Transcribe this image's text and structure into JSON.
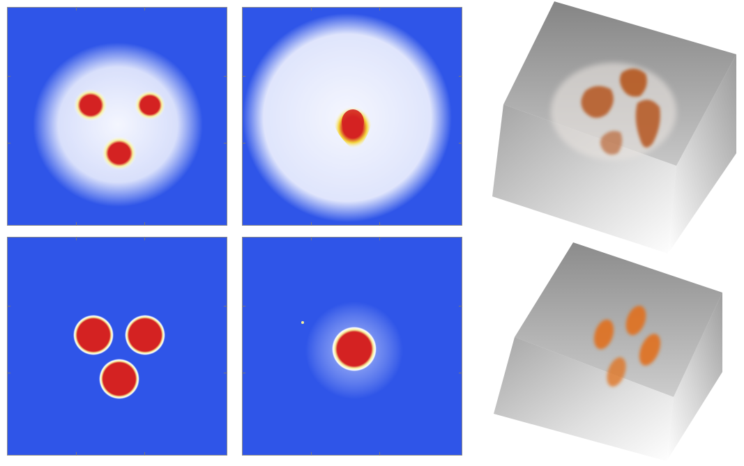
{
  "figure": {
    "panels": [
      {
        "id": "top-left",
        "field_color": "#2f55e8",
        "halo": "broad",
        "blob_count": 3,
        "blob_shape": "irregular"
      },
      {
        "id": "top-middle",
        "field_color": "#2f55e8",
        "halo": "broad",
        "blob_count": 1,
        "blob_shape": "irregular"
      },
      {
        "id": "bottom-left",
        "field_color": "#2f55e8",
        "halo": "none",
        "blob_count": 3,
        "blob_shape": "disc"
      },
      {
        "id": "bottom-middle",
        "field_color": "#2f55e8",
        "halo": "narrow",
        "blob_count": 1,
        "blob_shape": "disc"
      }
    ],
    "renders": [
      {
        "id": "top-right",
        "style": "diffuse",
        "blob_count": 4,
        "blob_color": "#b5561c"
      },
      {
        "id": "bottom-right",
        "style": "compact",
        "blob_count": 4,
        "blob_color": "#e0701e"
      }
    ],
    "colors": {
      "background_field": "#2f55e8",
      "halo": "#ffffff",
      "core_edge": "#f6ef9a",
      "core": "#d42222",
      "cube_shade": "#8d8d8d"
    }
  }
}
